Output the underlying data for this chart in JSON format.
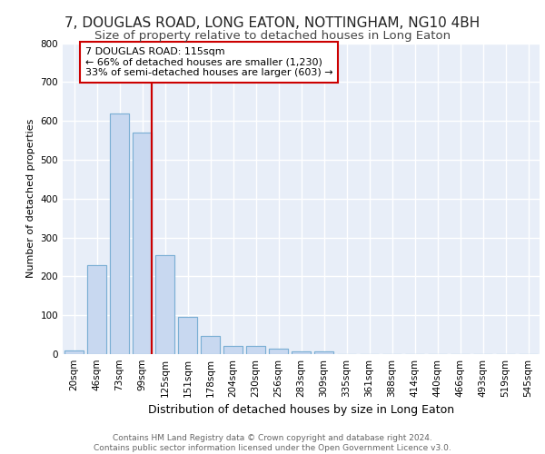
{
  "title1": "7, DOUGLAS ROAD, LONG EATON, NOTTINGHAM, NG10 4BH",
  "title2": "Size of property relative to detached houses in Long Eaton",
  "xlabel": "Distribution of detached houses by size in Long Eaton",
  "ylabel": "Number of detached properties",
  "bar_labels": [
    "20sqm",
    "46sqm",
    "73sqm",
    "99sqm",
    "125sqm",
    "151sqm",
    "178sqm",
    "204sqm",
    "230sqm",
    "256sqm",
    "283sqm",
    "309sqm",
    "335sqm",
    "361sqm",
    "388sqm",
    "414sqm",
    "440sqm",
    "466sqm",
    "493sqm",
    "519sqm",
    "545sqm"
  ],
  "bar_heights": [
    10,
    230,
    620,
    570,
    255,
    95,
    47,
    22,
    22,
    15,
    7,
    7,
    0,
    0,
    0,
    0,
    0,
    0,
    0,
    0,
    0
  ],
  "bar_color": "#c8d8f0",
  "bar_edge_color": "#7bafd4",
  "vline_color": "#cc0000",
  "annotation_text": "7 DOUGLAS ROAD: 115sqm\n← 66% of detached houses are smaller (1,230)\n33% of semi-detached houses are larger (603) →",
  "annotation_box_color": "#ffffff",
  "annotation_box_edge": "#cc0000",
  "ylim": [
    0,
    800
  ],
  "yticks": [
    0,
    100,
    200,
    300,
    400,
    500,
    600,
    700,
    800
  ],
  "background_color": "#e8eef8",
  "grid_color": "#ffffff",
  "footer_text": "Contains HM Land Registry data © Crown copyright and database right 2024.\nContains public sector information licensed under the Open Government Licence v3.0.",
  "title1_fontsize": 11,
  "title2_fontsize": 9.5,
  "xlabel_fontsize": 9,
  "ylabel_fontsize": 8,
  "tick_fontsize": 7.5,
  "annotation_fontsize": 8,
  "footer_fontsize": 6.5
}
